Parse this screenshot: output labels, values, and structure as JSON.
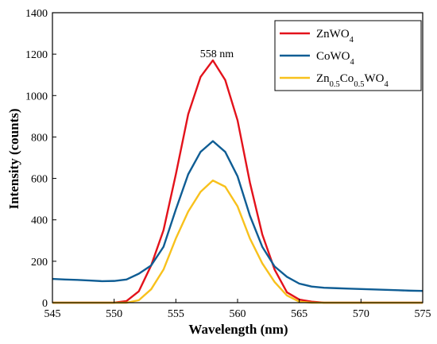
{
  "chart_data": {
    "type": "line",
    "xlabel": "Wavelength (nm)",
    "ylabel": "Intensity (counts)",
    "xlim": [
      545,
      575
    ],
    "ylim": [
      0,
      1400
    ],
    "xticks": [
      545,
      550,
      555,
      560,
      565,
      570,
      575
    ],
    "yticks": [
      0,
      200,
      400,
      600,
      800,
      1000,
      1200,
      1400
    ],
    "grid": false,
    "legend_position": "top-right",
    "annotation": "558 nm",
    "series": [
      {
        "name": "ZnWO4",
        "legend_base": "ZnWO",
        "legend_sub": "4",
        "color": "#e3121b",
        "x": [
          545,
          546,
          547,
          548,
          549,
          550,
          551,
          552,
          553,
          554,
          555,
          556,
          557,
          558,
          559,
          560,
          561,
          562,
          563,
          564,
          565,
          566,
          567,
          568,
          569,
          570,
          571,
          572,
          573,
          574,
          575
        ],
        "y": [
          0,
          0,
          0,
          0,
          0,
          0,
          8,
          55,
          180,
          350,
          620,
          910,
          1090,
          1170,
          1075,
          880,
          580,
          330,
          160,
          50,
          15,
          5,
          0,
          0,
          0,
          0,
          0,
          0,
          0,
          0,
          0
        ]
      },
      {
        "name": "CoWO4",
        "legend_base": "CoWO",
        "legend_sub": "4",
        "color": "#0f5d94",
        "x": [
          545,
          546,
          547,
          548,
          549,
          550,
          551,
          552,
          553,
          554,
          555,
          556,
          557,
          558,
          559,
          560,
          561,
          562,
          563,
          564,
          565,
          566,
          567,
          568,
          569,
          570,
          571,
          572,
          573,
          574,
          575
        ],
        "y": [
          115,
          112,
          110,
          107,
          104,
          105,
          112,
          140,
          180,
          270,
          450,
          620,
          728,
          780,
          728,
          610,
          420,
          270,
          175,
          125,
          92,
          78,
          72,
          70,
          68,
          66,
          64,
          62,
          60,
          58,
          57
        ]
      },
      {
        "name": "Zn0.5Co0.5WO4",
        "legend_parts": [
          "Zn",
          "0.5",
          "Co",
          "0.5",
          "WO",
          "4"
        ],
        "color": "#f8c11c",
        "x": [
          545,
          546,
          547,
          548,
          549,
          550,
          551,
          552,
          553,
          554,
          555,
          556,
          557,
          558,
          559,
          560,
          561,
          562,
          563,
          564,
          565,
          566,
          567,
          568,
          569,
          570,
          571,
          572,
          573,
          574,
          575
        ],
        "y": [
          0,
          0,
          0,
          0,
          0,
          0,
          0,
          12,
          65,
          160,
          310,
          440,
          535,
          590,
          560,
          465,
          310,
          190,
          100,
          35,
          5,
          0,
          0,
          0,
          0,
          0,
          0,
          0,
          0,
          0,
          0
        ]
      }
    ]
  }
}
